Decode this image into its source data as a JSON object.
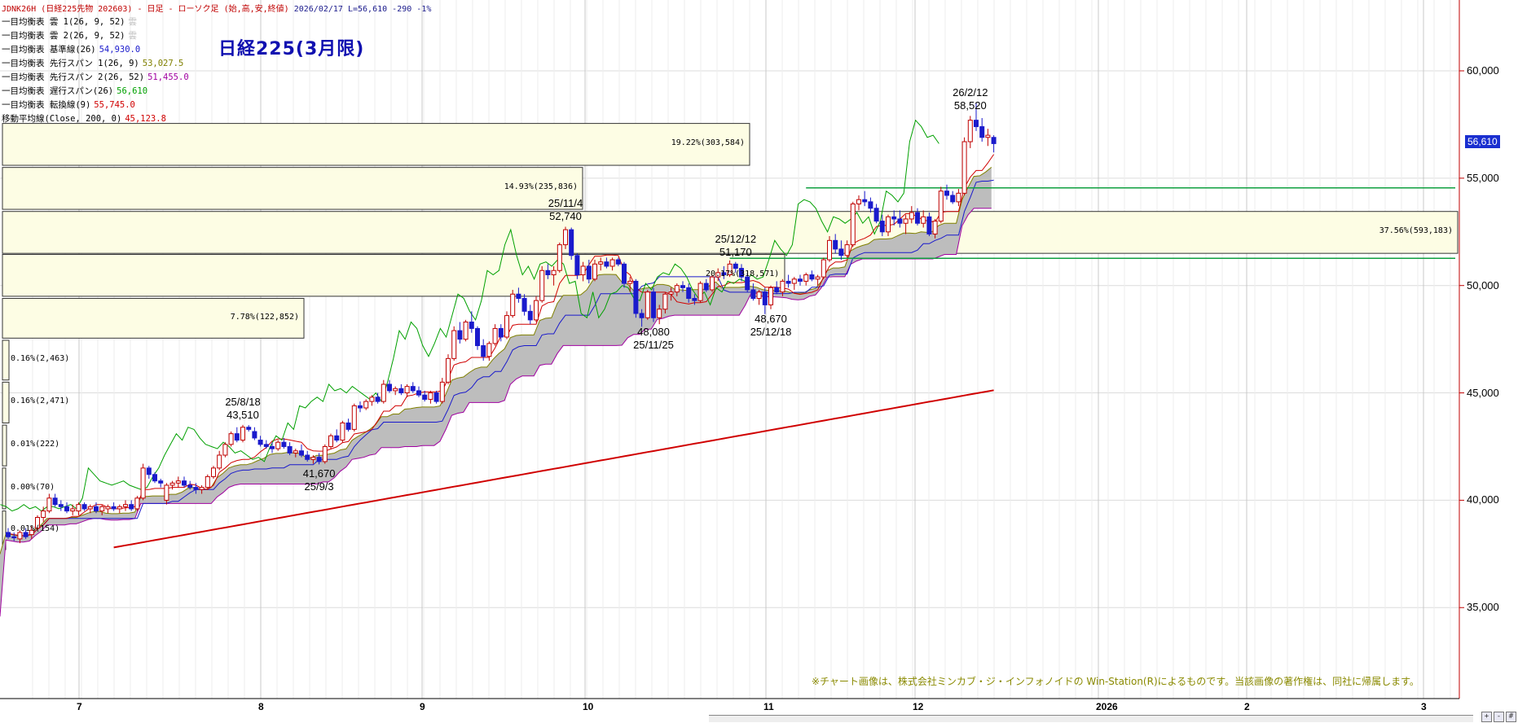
{
  "header": {
    "symbol": "JDNK26H",
    "description": "(日経225先物 202603) - 日足 - ローソク足 (始,高,安,終値)",
    "date": "2026/02/17",
    "last": "L=56,610",
    "change": "-290",
    "change_pct": "-1%"
  },
  "big_title": "日経225(3月限)",
  "indicators": [
    {
      "label": "一目均衡表 雲 1(26, 9, 52)",
      "value": "雲",
      "color": "#c0c0c0"
    },
    {
      "label": "一目均衡表 雲 2(26, 9, 52)",
      "value": "雲",
      "color": "#c0c0c0"
    },
    {
      "label": "一目均衡表 基準線(26)",
      "value": "54,930.0",
      "color": "#1a1acc"
    },
    {
      "label": "一目均衡表 先行スパン 1(26, 9)",
      "value": "53,027.5",
      "color": "#808000"
    },
    {
      "label": "一目均衡表 先行スパン 2(26, 52)",
      "value": "51,455.0",
      "color": "#a000a0"
    },
    {
      "label": "一目均衡表 遅行スパン(26)",
      "value": "56,610",
      "color": "#00a000"
    },
    {
      "label": "一目均衡表 転換線(9)",
      "value": "55,745.0",
      "color": "#d00000"
    },
    {
      "label": "移動平均線(Close, 200, 0)",
      "value": "45,123.8",
      "color": "#d00000"
    }
  ],
  "last_price_label": "56,610",
  "copyright": "※チャート画像は、株式会社ミンカブ・ジ・インフォノイドの Win-Station(R)によるものです。当該画像の著作権は、同社に帰属します。",
  "chart_data": {
    "type": "candlestick",
    "ylim": [
      32000,
      63000
    ],
    "yticks": [
      "35,000",
      "40,000",
      "45,000",
      "50,000",
      "55,000",
      "60,000"
    ],
    "xticks": [
      "7",
      "8",
      "9",
      "10",
      "11",
      "12",
      "2026",
      "2",
      "3"
    ],
    "annotations": [
      {
        "date": "25/8/18",
        "price": "43,510",
        "pos": "above"
      },
      {
        "date": "25/9/3",
        "price": "41,670",
        "pos": "below"
      },
      {
        "date": "25/11/4",
        "price": "52,740",
        "pos": "above"
      },
      {
        "date": "25/11/25",
        "price": "48,080",
        "pos": "below"
      },
      {
        "date": "25/12/12",
        "price": "51,170",
        "pos": "above"
      },
      {
        "date": "25/12/18",
        "price": "48,670",
        "pos": "below"
      },
      {
        "date": "26/2/12",
        "price": "58,520",
        "pos": "above"
      }
    ],
    "volume_profile": [
      {
        "label": "19.22%(303,584)",
        "top": 57550,
        "bottom": 55600
      },
      {
        "label": "14.93%(235,836)",
        "top": 55500,
        "bottom": 53550
      },
      {
        "label": "37.56%(593,183)",
        "top": 53450,
        "bottom": 51500
      },
      {
        "label": "20.17%(318,571)",
        "top": 51450,
        "bottom": 49500
      },
      {
        "label": "7.78%(122,852)",
        "top": 49400,
        "bottom": 47550
      },
      {
        "label": "0.16%(2,463)",
        "top": 47450,
        "bottom": 45600
      },
      {
        "label": "0.16%(2,471)",
        "top": 45500,
        "bottom": 43600
      },
      {
        "label": "0.01%(222)",
        "top": 43500,
        "bottom": 41600
      },
      {
        "label": "0.00%(70)",
        "top": 41500,
        "bottom": 39600
      },
      {
        "label": "0.01%(154)",
        "top": 39500,
        "bottom": 37700
      }
    ],
    "horizontal_lines": [
      54550,
      51270
    ],
    "candles": [
      {
        "o": 38500,
        "h": 38700,
        "l": 38200,
        "c": 38300
      },
      {
        "o": 38300,
        "h": 38500,
        "l": 38100,
        "c": 38250
      },
      {
        "o": 38200,
        "h": 38600,
        "l": 38000,
        "c": 38500
      },
      {
        "o": 38500,
        "h": 38700,
        "l": 38200,
        "c": 38300
      },
      {
        "o": 38400,
        "h": 38800,
        "l": 38200,
        "c": 38600
      },
      {
        "o": 38700,
        "h": 39300,
        "l": 38600,
        "c": 39200
      },
      {
        "o": 39200,
        "h": 39700,
        "l": 39000,
        "c": 39500
      },
      {
        "o": 39500,
        "h": 40300,
        "l": 39400,
        "c": 40100
      },
      {
        "o": 40100,
        "h": 40300,
        "l": 39700,
        "c": 39800
      },
      {
        "o": 39800,
        "h": 40000,
        "l": 39500,
        "c": 39700
      },
      {
        "o": 39700,
        "h": 39900,
        "l": 39400,
        "c": 39500
      },
      {
        "o": 39500,
        "h": 39800,
        "l": 39300,
        "c": 39600
      },
      {
        "o": 39500,
        "h": 39900,
        "l": 39300,
        "c": 39800
      },
      {
        "o": 39800,
        "h": 39900,
        "l": 39500,
        "c": 39600
      },
      {
        "o": 39600,
        "h": 39800,
        "l": 39400,
        "c": 39700
      },
      {
        "o": 39700,
        "h": 39900,
        "l": 39400,
        "c": 39500
      },
      {
        "o": 39500,
        "h": 39800,
        "l": 39300,
        "c": 39700
      },
      {
        "o": 39600,
        "h": 39800,
        "l": 39400,
        "c": 39700
      },
      {
        "o": 39700,
        "h": 39900,
        "l": 39500,
        "c": 39600
      },
      {
        "o": 39600,
        "h": 39800,
        "l": 39400,
        "c": 39700
      },
      {
        "o": 39700,
        "h": 40000,
        "l": 39500,
        "c": 39800
      },
      {
        "o": 39800,
        "h": 40000,
        "l": 39500,
        "c": 39600
      },
      {
        "o": 39600,
        "h": 40200,
        "l": 39500,
        "c": 40100
      },
      {
        "o": 40100,
        "h": 41700,
        "l": 40000,
        "c": 41500
      },
      {
        "o": 41500,
        "h": 41600,
        "l": 41000,
        "c": 41200
      },
      {
        "o": 41200,
        "h": 41300,
        "l": 40800,
        "c": 40900
      },
      {
        "o": 40900,
        "h": 41000,
        "l": 40600,
        "c": 40800
      },
      {
        "o": 40000,
        "h": 40800,
        "l": 39800,
        "c": 40700
      },
      {
        "o": 40700,
        "h": 40900,
        "l": 40500,
        "c": 40800
      },
      {
        "o": 40800,
        "h": 41100,
        "l": 40600,
        "c": 40900
      },
      {
        "o": 40900,
        "h": 41100,
        "l": 40600,
        "c": 40700
      },
      {
        "o": 40700,
        "h": 40900,
        "l": 40500,
        "c": 40600
      },
      {
        "o": 40600,
        "h": 40800,
        "l": 40300,
        "c": 40500
      },
      {
        "o": 40500,
        "h": 40700,
        "l": 40300,
        "c": 40600
      },
      {
        "o": 40600,
        "h": 41200,
        "l": 40500,
        "c": 41100
      },
      {
        "o": 41100,
        "h": 41600,
        "l": 41000,
        "c": 41500
      },
      {
        "o": 41500,
        "h": 42300,
        "l": 41400,
        "c": 42100
      },
      {
        "o": 42100,
        "h": 42700,
        "l": 42000,
        "c": 42600
      },
      {
        "o": 42600,
        "h": 43200,
        "l": 42500,
        "c": 43100
      },
      {
        "o": 43100,
        "h": 43400,
        "l": 42700,
        "c": 42800
      },
      {
        "o": 42800,
        "h": 43510,
        "l": 42700,
        "c": 43400
      },
      {
        "o": 43400,
        "h": 43500,
        "l": 43200,
        "c": 43300
      },
      {
        "o": 43200,
        "h": 43400,
        "l": 42800,
        "c": 42900
      },
      {
        "o": 42800,
        "h": 43000,
        "l": 42500,
        "c": 42600
      },
      {
        "o": 42600,
        "h": 42800,
        "l": 42400,
        "c": 42500
      },
      {
        "o": 42500,
        "h": 42700,
        "l": 42200,
        "c": 42400
      },
      {
        "o": 42400,
        "h": 42800,
        "l": 42300,
        "c": 42700
      },
      {
        "o": 42700,
        "h": 42900,
        "l": 42400,
        "c": 42500
      },
      {
        "o": 42500,
        "h": 42700,
        "l": 42100,
        "c": 42200
      },
      {
        "o": 42200,
        "h": 42400,
        "l": 42000,
        "c": 42300
      },
      {
        "o": 42300,
        "h": 42600,
        "l": 42000,
        "c": 42100
      },
      {
        "o": 42100,
        "h": 42300,
        "l": 41800,
        "c": 41900
      },
      {
        "o": 41900,
        "h": 42100,
        "l": 41700,
        "c": 42000
      },
      {
        "o": 42000,
        "h": 42200,
        "l": 41670,
        "c": 41800
      },
      {
        "o": 41800,
        "h": 42600,
        "l": 41700,
        "c": 42500
      },
      {
        "o": 42500,
        "h": 43100,
        "l": 42400,
        "c": 43000
      },
      {
        "o": 43000,
        "h": 43300,
        "l": 42700,
        "c": 42800
      },
      {
        "o": 42800,
        "h": 43700,
        "l": 42700,
        "c": 43600
      },
      {
        "o": 43600,
        "h": 43800,
        "l": 43200,
        "c": 43300
      },
      {
        "o": 43300,
        "h": 44500,
        "l": 43200,
        "c": 44400
      },
      {
        "o": 44400,
        "h": 44600,
        "l": 44100,
        "c": 44300
      },
      {
        "o": 44300,
        "h": 44700,
        "l": 44200,
        "c": 44600
      },
      {
        "o": 44600,
        "h": 44900,
        "l": 44400,
        "c": 44800
      },
      {
        "o": 44800,
        "h": 45000,
        "l": 44500,
        "c": 44600
      },
      {
        "o": 44600,
        "h": 45600,
        "l": 44500,
        "c": 45400
      },
      {
        "o": 45400,
        "h": 45600,
        "l": 45000,
        "c": 45100
      },
      {
        "o": 45100,
        "h": 45300,
        "l": 44900,
        "c": 45200
      },
      {
        "o": 45200,
        "h": 45400,
        "l": 44900,
        "c": 45000
      },
      {
        "o": 45000,
        "h": 45400,
        "l": 44800,
        "c": 45300
      },
      {
        "o": 45300,
        "h": 45500,
        "l": 45000,
        "c": 45100
      },
      {
        "o": 45100,
        "h": 45300,
        "l": 44800,
        "c": 44900
      },
      {
        "o": 44900,
        "h": 45100,
        "l": 44600,
        "c": 44700
      },
      {
        "o": 44700,
        "h": 45100,
        "l": 44500,
        "c": 45000
      },
      {
        "o": 45000,
        "h": 45100,
        "l": 44500,
        "c": 44600
      },
      {
        "o": 44600,
        "h": 45700,
        "l": 44500,
        "c": 45500
      },
      {
        "o": 45500,
        "h": 46800,
        "l": 45400,
        "c": 46600
      },
      {
        "o": 46600,
        "h": 48100,
        "l": 46500,
        "c": 47900
      },
      {
        "o": 47900,
        "h": 48300,
        "l": 47300,
        "c": 47500
      },
      {
        "o": 47500,
        "h": 48400,
        "l": 47400,
        "c": 48300
      },
      {
        "o": 48300,
        "h": 48800,
        "l": 47800,
        "c": 48000
      },
      {
        "o": 48000,
        "h": 48100,
        "l": 47000,
        "c": 47200
      },
      {
        "o": 47200,
        "h": 47500,
        "l": 46500,
        "c": 46700
      },
      {
        "o": 46700,
        "h": 47400,
        "l": 46500,
        "c": 47300
      },
      {
        "o": 47300,
        "h": 48200,
        "l": 47200,
        "c": 48000
      },
      {
        "o": 48000,
        "h": 48200,
        "l": 47400,
        "c": 47600
      },
      {
        "o": 47600,
        "h": 48800,
        "l": 47500,
        "c": 48600
      },
      {
        "o": 48600,
        "h": 49800,
        "l": 48500,
        "c": 49600
      },
      {
        "o": 49600,
        "h": 49900,
        "l": 49200,
        "c": 49400
      },
      {
        "o": 49400,
        "h": 49600,
        "l": 48600,
        "c": 48800
      },
      {
        "o": 48800,
        "h": 49100,
        "l": 48200,
        "c": 48400
      },
      {
        "o": 48400,
        "h": 49500,
        "l": 48300,
        "c": 49300
      },
      {
        "o": 49300,
        "h": 50900,
        "l": 49200,
        "c": 50700
      },
      {
        "o": 50700,
        "h": 51000,
        "l": 50300,
        "c": 50500
      },
      {
        "o": 50500,
        "h": 50900,
        "l": 50000,
        "c": 50700
      },
      {
        "o": 50700,
        "h": 52000,
        "l": 50600,
        "c": 51900
      },
      {
        "o": 51900,
        "h": 52740,
        "l": 51700,
        "c": 52600
      },
      {
        "o": 52600,
        "h": 52700,
        "l": 51200,
        "c": 51400
      },
      {
        "o": 51400,
        "h": 51500,
        "l": 50300,
        "c": 50500
      },
      {
        "o": 50500,
        "h": 51100,
        "l": 50200,
        "c": 50900
      },
      {
        "o": 50900,
        "h": 51200,
        "l": 50100,
        "c": 50300
      },
      {
        "o": 50300,
        "h": 51200,
        "l": 50200,
        "c": 51000
      },
      {
        "o": 51000,
        "h": 51300,
        "l": 50700,
        "c": 51100
      },
      {
        "o": 51100,
        "h": 51300,
        "l": 50800,
        "c": 50900
      },
      {
        "o": 50900,
        "h": 51300,
        "l": 50700,
        "c": 51200
      },
      {
        "o": 51200,
        "h": 51300,
        "l": 50900,
        "c": 51000
      },
      {
        "o": 51000,
        "h": 51100,
        "l": 49900,
        "c": 50100
      },
      {
        "o": 50100,
        "h": 50400,
        "l": 49700,
        "c": 50200
      },
      {
        "o": 50200,
        "h": 50300,
        "l": 48500,
        "c": 48700
      },
      {
        "o": 48700,
        "h": 48900,
        "l": 48080,
        "c": 48500
      },
      {
        "o": 48500,
        "h": 49800,
        "l": 48400,
        "c": 49700
      },
      {
        "o": 49700,
        "h": 49900,
        "l": 48300,
        "c": 48500
      },
      {
        "o": 48500,
        "h": 49100,
        "l": 48200,
        "c": 48900
      },
      {
        "o": 48900,
        "h": 49700,
        "l": 48700,
        "c": 49600
      },
      {
        "o": 49600,
        "h": 49900,
        "l": 49300,
        "c": 49700
      },
      {
        "o": 49700,
        "h": 50100,
        "l": 49500,
        "c": 50000
      },
      {
        "o": 50000,
        "h": 50200,
        "l": 49700,
        "c": 49900
      },
      {
        "o": 49900,
        "h": 50100,
        "l": 49200,
        "c": 49400
      },
      {
        "o": 49400,
        "h": 49600,
        "l": 49100,
        "c": 49300
      },
      {
        "o": 49300,
        "h": 50200,
        "l": 49200,
        "c": 50100
      },
      {
        "o": 50100,
        "h": 50300,
        "l": 49700,
        "c": 49800
      },
      {
        "o": 49800,
        "h": 50500,
        "l": 49700,
        "c": 50400
      },
      {
        "o": 50400,
        "h": 50800,
        "l": 50200,
        "c": 50600
      },
      {
        "o": 50600,
        "h": 50900,
        "l": 50300,
        "c": 50500
      },
      {
        "o": 50500,
        "h": 51170,
        "l": 50400,
        "c": 51000
      },
      {
        "o": 51000,
        "h": 51100,
        "l": 50600,
        "c": 50800
      },
      {
        "o": 50800,
        "h": 51000,
        "l": 50200,
        "c": 50400
      },
      {
        "o": 50400,
        "h": 50600,
        "l": 49700,
        "c": 49800
      },
      {
        "o": 49800,
        "h": 50100,
        "l": 49300,
        "c": 49400
      },
      {
        "o": 49400,
        "h": 49800,
        "l": 49100,
        "c": 49700
      },
      {
        "o": 49700,
        "h": 49900,
        "l": 48670,
        "c": 49100
      },
      {
        "o": 49100,
        "h": 50000,
        "l": 48900,
        "c": 49900
      },
      {
        "o": 49900,
        "h": 50200,
        "l": 49600,
        "c": 49700
      },
      {
        "o": 49700,
        "h": 50300,
        "l": 49500,
        "c": 50200
      },
      {
        "o": 50200,
        "h": 50500,
        "l": 49900,
        "c": 50100
      },
      {
        "o": 50100,
        "h": 50400,
        "l": 49800,
        "c": 50300
      },
      {
        "o": 50300,
        "h": 50500,
        "l": 50000,
        "c": 50200
      },
      {
        "o": 50200,
        "h": 50600,
        "l": 50000,
        "c": 50500
      },
      {
        "o": 50500,
        "h": 50700,
        "l": 50200,
        "c": 50300
      },
      {
        "o": 50300,
        "h": 50500,
        "l": 50000,
        "c": 50400
      },
      {
        "o": 50400,
        "h": 51300,
        "l": 50300,
        "c": 51200
      },
      {
        "o": 51200,
        "h": 52300,
        "l": 51100,
        "c": 52100
      },
      {
        "o": 52100,
        "h": 52400,
        "l": 51500,
        "c": 51700
      },
      {
        "o": 51700,
        "h": 52100,
        "l": 51200,
        "c": 51400
      },
      {
        "o": 51400,
        "h": 52100,
        "l": 51300,
        "c": 51900
      },
      {
        "o": 51900,
        "h": 53900,
        "l": 51800,
        "c": 53800
      },
      {
        "o": 53800,
        "h": 54200,
        "l": 53500,
        "c": 54000
      },
      {
        "o": 54000,
        "h": 54400,
        "l": 53700,
        "c": 53900
      },
      {
        "o": 53900,
        "h": 54100,
        "l": 53400,
        "c": 53600
      },
      {
        "o": 53600,
        "h": 53800,
        "l": 52900,
        "c": 53000
      },
      {
        "o": 53000,
        "h": 53300,
        "l": 52300,
        "c": 52500
      },
      {
        "o": 52500,
        "h": 53300,
        "l": 52300,
        "c": 53200
      },
      {
        "o": 53200,
        "h": 53500,
        "l": 52800,
        "c": 53100
      },
      {
        "o": 53100,
        "h": 53500,
        "l": 52700,
        "c": 52900
      },
      {
        "o": 52900,
        "h": 53300,
        "l": 52400,
        "c": 53100
      },
      {
        "o": 53100,
        "h": 53700,
        "l": 52900,
        "c": 53400
      },
      {
        "o": 53400,
        "h": 53600,
        "l": 52800,
        "c": 52900
      },
      {
        "o": 52900,
        "h": 53500,
        "l": 52700,
        "c": 53200
      },
      {
        "o": 53200,
        "h": 53400,
        "l": 52300,
        "c": 52400
      },
      {
        "o": 52400,
        "h": 53100,
        "l": 52200,
        "c": 53000
      },
      {
        "o": 53000,
        "h": 54600,
        "l": 52900,
        "c": 54400
      },
      {
        "o": 54400,
        "h": 54700,
        "l": 54000,
        "c": 54200
      },
      {
        "o": 54200,
        "h": 54400,
        "l": 53800,
        "c": 53900
      },
      {
        "o": 53900,
        "h": 54500,
        "l": 53700,
        "c": 54300
      },
      {
        "o": 54300,
        "h": 56900,
        "l": 54200,
        "c": 56700
      },
      {
        "o": 56700,
        "h": 57900,
        "l": 56400,
        "c": 57700
      },
      {
        "o": 57700,
        "h": 58520,
        "l": 57200,
        "c": 57400
      },
      {
        "o": 57400,
        "h": 57800,
        "l": 56700,
        "c": 56900
      },
      {
        "o": 56900,
        "h": 57300,
        "l": 56500,
        "c": 57000
      },
      {
        "o": 56900,
        "h": 57000,
        "l": 56200,
        "c": 56610
      }
    ]
  }
}
